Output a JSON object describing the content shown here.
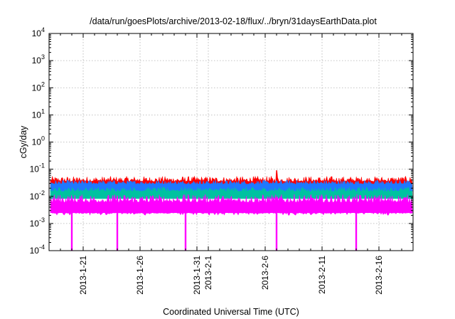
{
  "chart_data": {
    "type": "area",
    "title": "/data/run/goesPlots/archive/2013-02-18/flux/../bryn/31daysEarthData.plot",
    "xlabel": "Coordinated Universal Time (UTC)",
    "ylabel": "cGy/day",
    "yscale": "log",
    "ylim": [
      0.0001,
      10000
    ],
    "xlim": [
      "2013-01-18",
      "2013-02-19"
    ],
    "grid": true,
    "legend": "none",
    "y_ticks": [
      {
        "base": "10",
        "exp": "-4",
        "value": 0.0001
      },
      {
        "base": "10",
        "exp": "-3",
        "value": 0.001
      },
      {
        "base": "10",
        "exp": "-2",
        "value": 0.01
      },
      {
        "base": "10",
        "exp": "-1",
        "value": 0.1
      },
      {
        "base": "10",
        "exp": "0",
        "value": 1
      },
      {
        "base": "10",
        "exp": "1",
        "value": 10
      },
      {
        "base": "10",
        "exp": "2",
        "value": 100
      },
      {
        "base": "10",
        "exp": "3",
        "value": 1000
      },
      {
        "base": "10",
        "exp": "4",
        "value": 10000
      }
    ],
    "x_ticks": [
      {
        "label": "2013-1-21",
        "date": "2013-01-21"
      },
      {
        "label": "2013-1-26",
        "date": "2013-01-26"
      },
      {
        "label": "2013-1-31",
        "date": "2013-01-31"
      },
      {
        "label": "2013-2-1",
        "date": "2013-02-01"
      },
      {
        "label": "2013-2-6",
        "date": "2013-02-06"
      },
      {
        "label": "2013-2-11",
        "date": "2013-02-11"
      },
      {
        "label": "2013-2-16",
        "date": "2013-02-16"
      }
    ],
    "series": [
      {
        "color": "#ff0000",
        "baseline": 0.035,
        "typical_max": 0.055,
        "spike_max": 0.09,
        "spikes": [
          "2013-02-07"
        ]
      },
      {
        "color": "#1f78ff",
        "baseline": 0.028,
        "typical_max": 0.04
      },
      {
        "color": "#00c2a0",
        "baseline": 0.015,
        "typical_max": 0.022
      },
      {
        "color": "#ff00ff",
        "baseline": 0.006,
        "typical_max": 0.012,
        "floor": 0.0025,
        "dropouts": [
          "2013-01-20",
          "2013-01-24",
          "2013-01-30",
          "2013-02-07",
          "2013-02-14"
        ],
        "dropout_min": 0.0001
      }
    ]
  }
}
